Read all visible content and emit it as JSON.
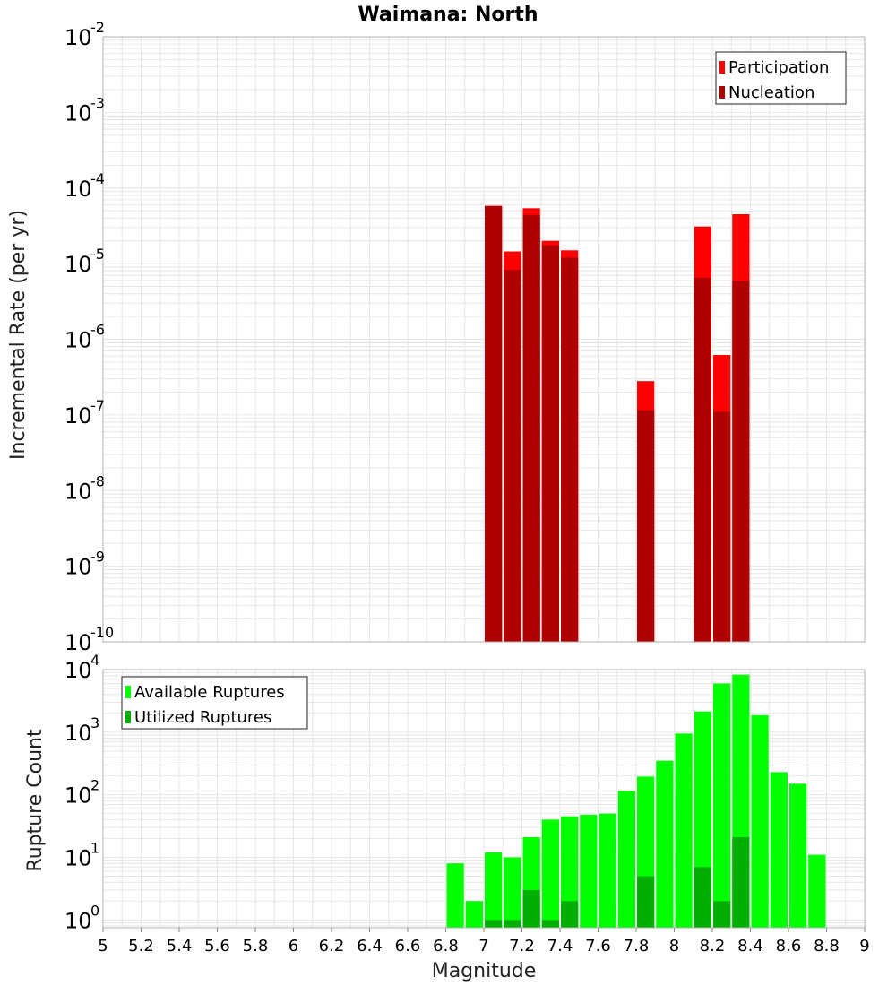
{
  "title": "Waimana: North",
  "colors": {
    "participation": "#ff0000",
    "nucleation": "#b00000",
    "available": "#00ff00",
    "utilized": "#00b000",
    "grid": "#e6e6e6",
    "frame": "#b0b0b0"
  },
  "chart_data": [
    {
      "type": "bar",
      "yscale": "log",
      "ylabel": "Incremental Rate (per yr)",
      "xlabel": "",
      "xlim": [
        5,
        9
      ],
      "ylim": [
        1e-10,
        0.01
      ],
      "ytick_labels": [
        {
          "base": "10",
          "exp": "-2",
          "value": 0.01
        },
        {
          "base": "10",
          "exp": "-3",
          "value": 0.001
        },
        {
          "base": "10",
          "exp": "-4",
          "value": 0.0001
        },
        {
          "base": "10",
          "exp": "-5",
          "value": 1e-05
        },
        {
          "base": "10",
          "exp": "-6",
          "value": 1e-06
        },
        {
          "base": "10",
          "exp": "-7",
          "value": 1e-07
        },
        {
          "base": "10",
          "exp": "-8",
          "value": 1e-08
        },
        {
          "base": "10",
          "exp": "-9",
          "value": 1e-09
        },
        {
          "base": "10",
          "exp": "-10",
          "value": 1e-10
        }
      ],
      "legend": {
        "position": "top-right",
        "entries": [
          "Participation",
          "Nucleation"
        ]
      },
      "grid": true,
      "x": [
        7.05,
        7.15,
        7.25,
        7.35,
        7.45,
        7.85,
        8.15,
        8.25,
        8.35
      ],
      "series": [
        {
          "name": "Participation",
          "values": [
            5.8e-05,
            1.45e-05,
            5.4e-05,
            2e-05,
            1.5e-05,
            2.8e-07,
            3.1e-05,
            6.2e-07,
            4.5e-05
          ]
        },
        {
          "name": "Nucleation",
          "values": [
            5.8e-05,
            8.3e-06,
            4.4e-05,
            1.75e-05,
            1.2e-05,
            1.15e-07,
            6.5e-06,
            1.1e-07,
            5.9e-06
          ]
        }
      ]
    },
    {
      "type": "bar",
      "yscale": "log",
      "ylabel": "Rupture Count",
      "xlabel": "Magnitude",
      "xlim": [
        5,
        9
      ],
      "ylim": [
        0.75,
        10000
      ],
      "ytick_labels": [
        {
          "base": "10",
          "exp": "4",
          "value": 10000
        },
        {
          "base": "10",
          "exp": "3",
          "value": 1000
        },
        {
          "base": "10",
          "exp": "2",
          "value": 100
        },
        {
          "base": "10",
          "exp": "1",
          "value": 10
        },
        {
          "base": "10",
          "exp": "0",
          "value": 1
        }
      ],
      "xtick_labels": [
        "5",
        "5.2",
        "5.4",
        "5.6",
        "5.8",
        "6",
        "6.2",
        "6.4",
        "6.6",
        "6.8",
        "7",
        "7.2",
        "7.4",
        "7.6",
        "7.8",
        "8",
        "8.2",
        "8.4",
        "8.6",
        "8.8",
        "9"
      ],
      "legend": {
        "position": "top-left",
        "entries": [
          "Available Ruptures",
          "Utilized Ruptures"
        ]
      },
      "grid": true,
      "available_x": [
        6.85,
        6.95,
        7.05,
        7.15,
        7.25,
        7.35,
        7.45,
        7.55,
        7.65,
        7.75,
        7.85,
        7.95,
        8.05,
        8.15,
        8.25,
        8.35,
        8.45,
        8.55,
        8.65,
        8.75
      ],
      "utilized_x": [
        7.05,
        7.15,
        7.25,
        7.35,
        7.45,
        7.85,
        8.15,
        8.25,
        8.35
      ],
      "series": [
        {
          "name": "Available Ruptures",
          "values": [
            8,
            2,
            12,
            10,
            21,
            40,
            45,
            48,
            50,
            115,
            195,
            350,
            950,
            2150,
            6000,
            8300,
            1870,
            230,
            150,
            11
          ]
        },
        {
          "name": "Utilized Ruptures",
          "values": [
            1,
            1,
            3,
            1,
            2,
            5,
            7,
            2,
            21
          ]
        }
      ]
    }
  ]
}
